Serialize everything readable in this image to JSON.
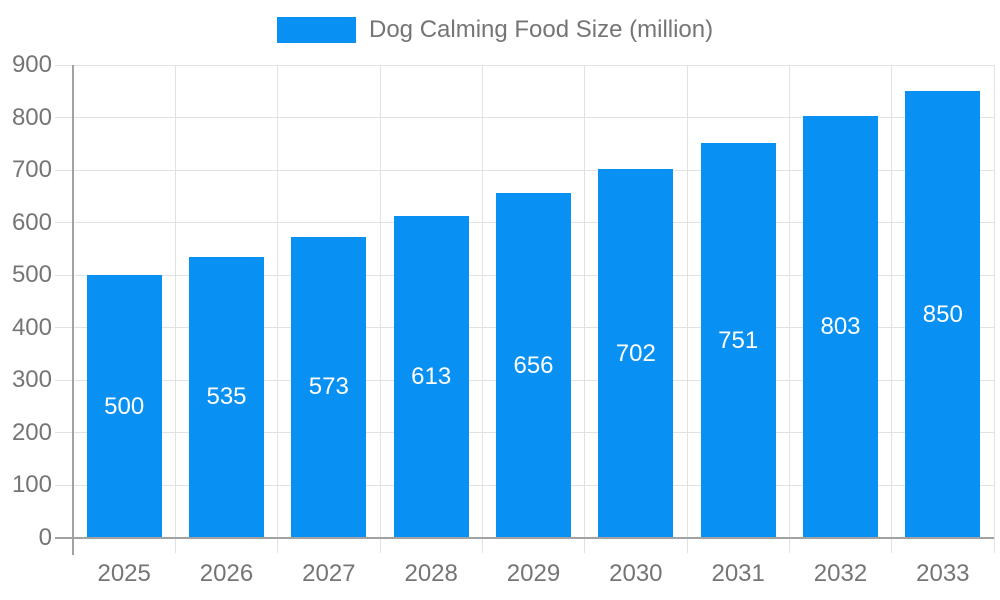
{
  "legend": {
    "position": "top-center",
    "label": "Dog Calming Food Size (million)"
  },
  "chart_data": {
    "type": "bar",
    "title": "Dog Calming Food Size (million)",
    "series": [
      {
        "name": "Dog Calming Food Size (million)",
        "values": [
          500,
          535,
          573,
          613,
          656,
          702,
          751,
          803,
          850
        ]
      }
    ],
    "categories": [
      "2025",
      "2026",
      "2027",
      "2028",
      "2029",
      "2030",
      "2031",
      "2032",
      "2033"
    ],
    "xlabel": "",
    "ylabel": "",
    "ylim": [
      0,
      900
    ],
    "yticks": [
      0,
      100,
      200,
      300,
      400,
      500,
      600,
      700,
      800,
      900
    ],
    "grid": true,
    "value_label_position": "inside-center"
  },
  "colors": {
    "bar": "#0890f2",
    "value_label": "#ffffff",
    "axis_text": "#757575",
    "grid_line": "#e2e2e2",
    "axis_line": "#a2a2a2",
    "background": "#ffffff"
  }
}
